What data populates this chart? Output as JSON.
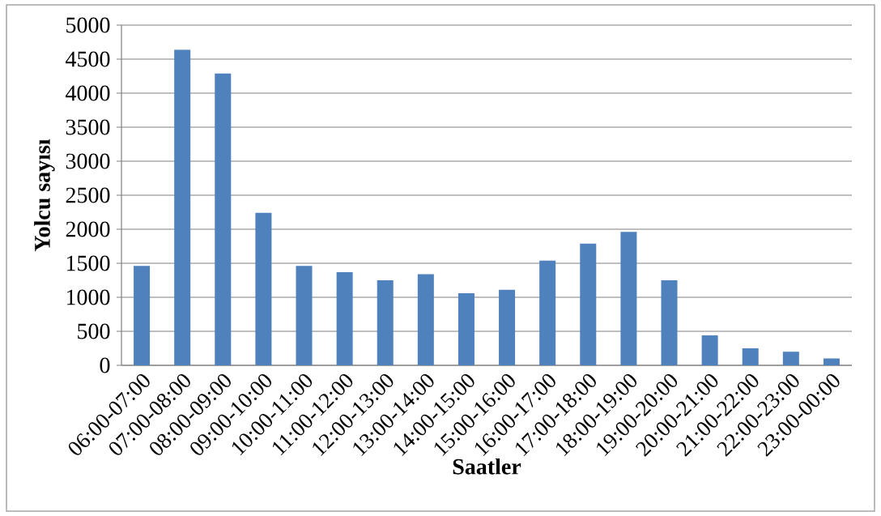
{
  "chart_data": {
    "type": "bar",
    "xlabel": "Saatler",
    "ylabel": "Yolcu sayısı",
    "categories": [
      "06:00-07:00",
      "07:00-08:00",
      "08:00-09:00",
      "09:00-10:00",
      "10:00-11:00",
      "11:00-12:00",
      "12:00-13:00",
      "13:00-14:00",
      "14:00-15:00",
      "15:00-16:00",
      "16:00-17:00",
      "17:00-18:00",
      "18:00-19:00",
      "19:00-20:00",
      "20:00-21:00",
      "21:00-22:00",
      "22:00-23:00",
      "23:00-00:00"
    ],
    "values": [
      1460,
      4640,
      4290,
      2240,
      1460,
      1370,
      1250,
      1340,
      1060,
      1110,
      1540,
      1790,
      1960,
      1250,
      440,
      250,
      200,
      100
    ],
    "color": "#4f81bd",
    "ylim": [
      0,
      5000
    ],
    "yticks": [
      0,
      500,
      1000,
      1500,
      2000,
      2500,
      3000,
      3500,
      4000,
      4500,
      5000
    ],
    "grid": "y"
  }
}
